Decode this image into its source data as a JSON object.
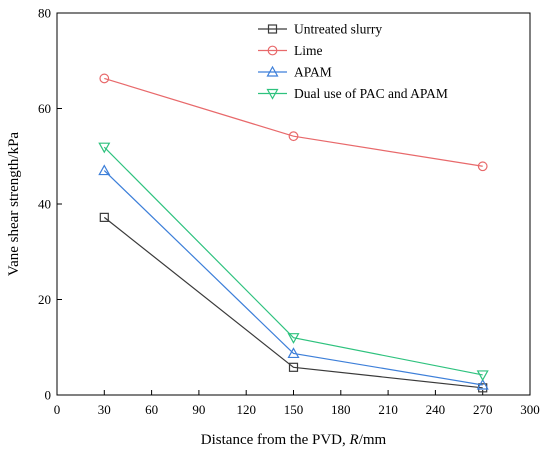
{
  "chart_data": {
    "type": "line",
    "title": "",
    "xlabel_prefix": "Distance from the PVD, ",
    "xlabel_var": "R",
    "xlabel_suffix": "/mm",
    "ylabel": "Vane shear strength/kPa",
    "xlim": [
      0,
      300
    ],
    "ylim": [
      0,
      80
    ],
    "xticks": [
      0,
      30,
      60,
      90,
      120,
      150,
      180,
      210,
      240,
      270,
      300
    ],
    "yticks": [
      0,
      20,
      40,
      60,
      80
    ],
    "grid": false,
    "legend_position": "top-right",
    "x": [
      30,
      150,
      270
    ],
    "series": [
      {
        "name": "Untreated slurry",
        "values": [
          37.2,
          5.8,
          1.5
        ],
        "color": "#3a3a3a",
        "marker": "square"
      },
      {
        "name": "Lime",
        "values": [
          66.3,
          54.2,
          47.9
        ],
        "color": "#e8696b",
        "marker": "circle"
      },
      {
        "name": "APAM",
        "values": [
          47.0,
          8.7,
          2.1
        ],
        "color": "#3d7fd9",
        "marker": "triangle-up"
      },
      {
        "name": "Dual use of PAC and APAM",
        "values": [
          51.9,
          12.0,
          4.2
        ],
        "color": "#2ec27e",
        "marker": "triangle-down"
      }
    ]
  }
}
